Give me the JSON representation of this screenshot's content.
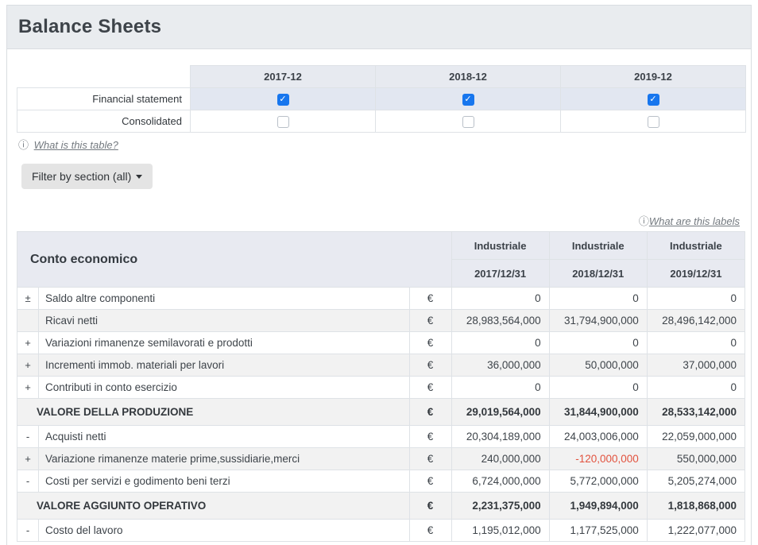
{
  "header": {
    "title": "Balance Sheets"
  },
  "selector": {
    "years": [
      "2017-12",
      "2018-12",
      "2019-12"
    ],
    "rows": [
      {
        "label": "Financial statement",
        "checked": [
          true,
          true,
          true
        ]
      },
      {
        "label": "Consolidated",
        "checked": [
          false,
          false,
          false
        ]
      }
    ],
    "info_icon": "ⓘ",
    "help_link": "What is this table?"
  },
  "toolbar": {
    "filter_button_label": "Filter by section (all)"
  },
  "labels_help": {
    "info_icon": "ⓘ",
    "link": "What are this labels"
  },
  "statement": {
    "title": "Conto economico",
    "columns": [
      {
        "group": "Industriale",
        "date": "2017/12/31"
      },
      {
        "group": "Industriale",
        "date": "2018/12/31"
      },
      {
        "group": "Industriale",
        "date": "2019/12/31"
      }
    ],
    "currency_symbol": "€",
    "rows": [
      {
        "sign": "±",
        "label": "Saldo altre componenti",
        "section": false,
        "values": [
          "0",
          "0",
          "0"
        ]
      },
      {
        "sign": "",
        "label": "Ricavi netti",
        "section": false,
        "values": [
          "28,983,564,000",
          "31,794,900,000",
          "28,496,142,000"
        ]
      },
      {
        "sign": "+",
        "label": "Variazioni rimanenze semilavorati e prodotti",
        "section": false,
        "values": [
          "0",
          "0",
          "0"
        ]
      },
      {
        "sign": "+",
        "label": "Incrementi immob. materiali per lavori",
        "section": false,
        "values": [
          "36,000,000",
          "50,000,000",
          "37,000,000"
        ]
      },
      {
        "sign": "+",
        "label": "Contributi in conto esercizio",
        "section": false,
        "values": [
          "0",
          "0",
          "0"
        ]
      },
      {
        "sign": "",
        "label": "VALORE DELLA PRODUZIONE",
        "section": true,
        "values": [
          "29,019,564,000",
          "31,844,900,000",
          "28,533,142,000"
        ]
      },
      {
        "sign": "-",
        "label": "Acquisti netti",
        "section": false,
        "values": [
          "20,304,189,000",
          "24,003,006,000",
          "22,059,000,000"
        ]
      },
      {
        "sign": "+",
        "label": "Variazione rimanenze materie prime,sussidiarie,merci",
        "section": false,
        "values": [
          "240,000,000",
          "-120,000,000",
          "550,000,000"
        ]
      },
      {
        "sign": "-",
        "label": "Costi per servizi e godimento beni terzi",
        "section": false,
        "values": [
          "6,724,000,000",
          "5,772,000,000",
          "5,205,274,000"
        ]
      },
      {
        "sign": "",
        "label": "VALORE AGGIUNTO OPERATIVO",
        "section": true,
        "values": [
          "2,231,375,000",
          "1,949,894,000",
          "1,818,868,000"
        ]
      },
      {
        "sign": "-",
        "label": "Costo del lavoro",
        "section": false,
        "values": [
          "1,195,012,000",
          "1,177,525,000",
          "1,222,077,000"
        ]
      }
    ]
  },
  "colors": {
    "accent_blue": "#1776ee",
    "negative_red": "#e2523e",
    "card_header_bg": "#e9ecef",
    "table_head_bg": "#e8eaf1",
    "checked_row_bg": "#e2e7f1",
    "stripe_bg": "#f2f2f2",
    "border": "#dee2e6"
  }
}
